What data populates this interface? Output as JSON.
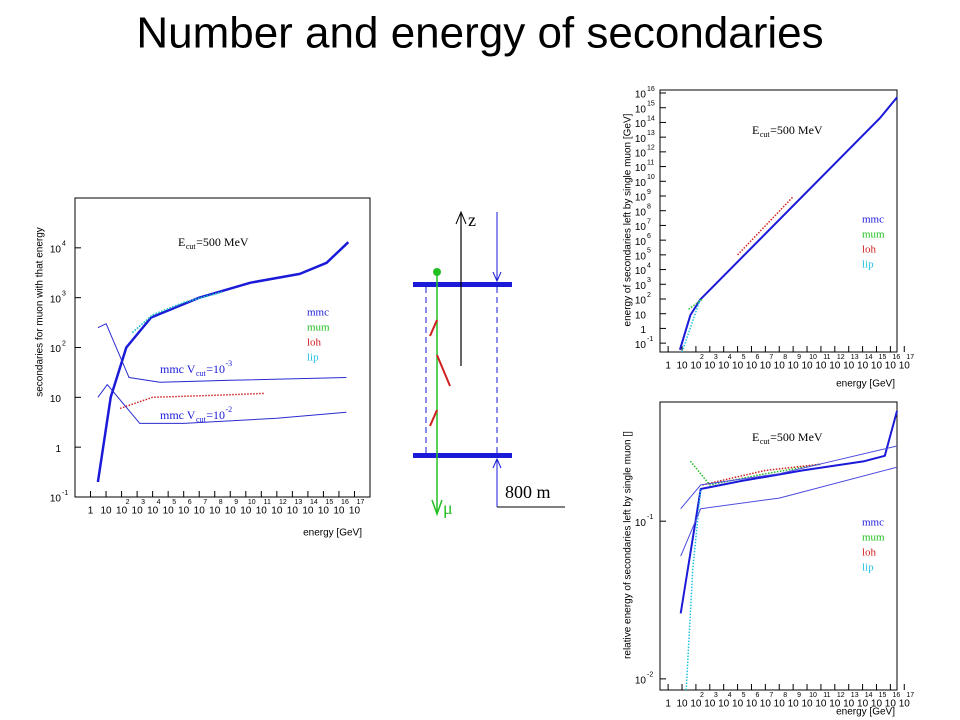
{
  "title": "Number and energy of secondaries",
  "diagram": {
    "axis_label": "z",
    "particle": "μ",
    "depth": "800 m"
  },
  "chart_data": [
    {
      "type": "line",
      "xlog": true,
      "ylog": true,
      "y_label": "secondaries for muon with that energy",
      "x_label": "energy [GeV]",
      "xlim": [
        0.1,
        1e+18
      ],
      "ylim": [
        0.1,
        100000.0
      ],
      "xticks": [
        1,
        10,
        {
          "value": 100.0,
          "label": "10",
          "sup": "2"
        },
        {
          "value": 1000.0,
          "label": "10",
          "sup": "3"
        },
        {
          "value": 10000.0,
          "label": "10",
          "sup": "4"
        },
        {
          "value": 100000.0,
          "label": "10",
          "sup": "5"
        },
        {
          "value": 1000000.0,
          "label": "10",
          "sup": "6"
        },
        {
          "value": 10000000.0,
          "label": "10",
          "sup": "7"
        },
        {
          "value": 100000000.0,
          "label": "10",
          "sup": "8"
        },
        {
          "value": 1000000000.0,
          "label": "10",
          "sup": "9"
        },
        {
          "value": 10000000000.0,
          "label": "10",
          "sup": "10"
        },
        {
          "value": 100000000000.0,
          "label": "10",
          "sup": "11"
        },
        {
          "value": 1000000000000.0,
          "label": "10",
          "sup": "12"
        },
        {
          "value": 10000000000000.0,
          "label": "10",
          "sup": "13"
        },
        {
          "value": 100000000000000.0,
          "label": "10",
          "sup": "14"
        },
        {
          "value": 1000000000000000.0,
          "label": "10",
          "sup": "15"
        },
        {
          "value": 1e+16,
          "label": "10",
          "sup": "16"
        },
        {
          "value": 1e+17,
          "label": "10",
          "sup": "17"
        }
      ],
      "yticks": [
        {
          "value": 0.1,
          "label": "10",
          "sup": "-1"
        },
        1,
        10,
        {
          "value": 100,
          "label": "10",
          "sup": "2"
        },
        {
          "value": 1000,
          "label": "10",
          "sup": "3"
        },
        {
          "value": 10000,
          "label": "10",
          "sup": "4"
        }
      ],
      "legend": true,
      "series": [
        {
          "name": "mmc",
          "color": "#1a1ad8",
          "linewidth": 2.5,
          "x": [
            3,
            20,
            200,
            8000,
            10000000.0,
            20000000000.0,
            30000000000000.0,
            1600000000000000.0,
            4e+16
          ],
          "values": [
            0.2,
            10,
            100,
            400,
            1000,
            2000,
            3000,
            5000,
            13000
          ]
        },
        {
          "name": "mum",
          "color": "#22c022",
          "dotted": true,
          "linewidth": 1.5,
          "x": [
            500,
            10000.0,
            1000000.0,
            300000000.0
          ],
          "values": [
            200,
            450,
            800,
            1300
          ]
        },
        {
          "name": "loh",
          "color": "#d02020",
          "dotted": true,
          "linewidth": 1.5,
          "x": [
            80,
            10000.0,
            100000000.0,
            150000000000.0
          ],
          "values": [
            6,
            10,
            11,
            12
          ]
        },
        {
          "name": "lip",
          "color": "#20c0e0",
          "dotted": true,
          "linewidth": 1.5,
          "x": [
            500,
            10000.0,
            1000000.0,
            300000000.0
          ],
          "values": [
            200,
            450,
            800,
            1300
          ]
        },
        {
          "color": "#2a2ad0",
          "linewidth": 1,
          "x": [
            3,
            10,
            300,
            30000.0,
            1000000000.0,
            3e+16
          ],
          "values": [
            250,
            300,
            25,
            20,
            22,
            25
          ]
        },
        {
          "color": "#2a2ad0",
          "linewidth": 1,
          "x": [
            3,
            12,
            1500,
            1000000.0,
            1000000000000.0,
            3e+16
          ],
          "values": [
            10,
            18,
            3,
            3,
            3.8,
            5
          ]
        }
      ],
      "annotations": [
        {
          "color": "#000000",
          "parts": [
            "E",
            {
              "sub": "cut"
            },
            "=500 MeV"
          ]
        },
        {
          "color": "#1a1ad8",
          "parts": [
            "mmc V",
            {
              "sub": "cut"
            },
            "=10",
            {
              "sup": "-3"
            }
          ]
        },
        {
          "color": "#1a1ad8",
          "parts": [
            "mmc V",
            {
              "sub": "cut"
            },
            "=10",
            {
              "sup": "-2"
            }
          ]
        }
      ]
    },
    {
      "type": "line",
      "xlog": true,
      "ylog": true,
      "y_label": "energy of secondaries left by single muon [GeV]",
      "x_label": "energy [GeV]",
      "xlim": [
        0.26,
        3e+16
      ],
      "ylim": [
        0.025,
        1.6e+16
      ],
      "xticks": [
        1,
        10,
        {
          "value": 100.0,
          "label": "10",
          "sup": "2"
        },
        {
          "value": 1000.0,
          "label": "10",
          "sup": "3"
        },
        {
          "value": 10000.0,
          "label": "10",
          "sup": "4"
        },
        {
          "value": 100000.0,
          "label": "10",
          "sup": "5"
        },
        {
          "value": 1000000.0,
          "label": "10",
          "sup": "6"
        },
        {
          "value": 10000000.0,
          "label": "10",
          "sup": "7"
        },
        {
          "value": 100000000.0,
          "label": "10",
          "sup": "8"
        },
        {
          "value": 1000000000.0,
          "label": "10",
          "sup": "9"
        },
        {
          "value": 10000000000.0,
          "label": "10",
          "sup": "10"
        },
        {
          "value": 100000000000.0,
          "label": "10",
          "sup": "11"
        },
        {
          "value": 1000000000000.0,
          "label": "10",
          "sup": "12"
        },
        {
          "value": 10000000000000.0,
          "label": "10",
          "sup": "13"
        },
        {
          "value": 100000000000000.0,
          "label": "10",
          "sup": "14"
        },
        {
          "value": 1000000000000000.0,
          "label": "10",
          "sup": "15"
        },
        {
          "value": 1e+16,
          "label": "10",
          "sup": "16"
        },
        {
          "value": 1e+17,
          "label": "10",
          "sup": "17"
        }
      ],
      "yticks": [
        {
          "value": 0.1,
          "label": "10",
          "sup": "-1"
        },
        1,
        10,
        {
          "value": 100.0,
          "label": "10",
          "sup": "2"
        },
        {
          "value": 1000.0,
          "label": "10",
          "sup": "3"
        },
        {
          "value": 10000.0,
          "label": "10",
          "sup": "4"
        },
        {
          "value": 100000.0,
          "label": "10",
          "sup": "5"
        },
        {
          "value": 1000000.0,
          "label": "10",
          "sup": "6"
        },
        {
          "value": 10000000.0,
          "label": "10",
          "sup": "7"
        },
        {
          "value": 100000000.0,
          "label": "10",
          "sup": "8"
        },
        {
          "value": 1000000000.0,
          "label": "10",
          "sup": "9"
        },
        {
          "value": 10000000000.0,
          "label": "10",
          "sup": "10"
        },
        {
          "value": 100000000000.0,
          "label": "10",
          "sup": "11"
        },
        {
          "value": 1000000000000.0,
          "label": "10",
          "sup": "12"
        },
        {
          "value": 10000000000000.0,
          "label": "10",
          "sup": "13"
        },
        {
          "value": 100000000000000.0,
          "label": "10",
          "sup": "14"
        },
        {
          "value": 1000000000000000.0,
          "label": "10",
          "sup": "15"
        },
        {
          "value": 1e+16,
          "label": "10",
          "sup": "16"
        }
      ],
      "legend": true,
      "series": [
        {
          "name": "mmc",
          "color": "#1a1ad8",
          "linewidth": 2,
          "x": [
            7,
            40,
            200,
            1800000000000000.0,
            3e+16
          ],
          "values": [
            0.035,
            8,
            90,
            200000000000000.0,
            5000000000000000.0
          ]
        },
        {
          "name": "mum",
          "color": "#22c022",
          "dotted": true,
          "linewidth": 1.5,
          "x": [
            30,
            300
          ],
          "values": [
            20,
            100
          ]
        },
        {
          "name": "loh",
          "color": "#d02020",
          "dotted": true,
          "linewidth": 1.5,
          "x": [
            100000.0,
            1000000000.0
          ],
          "values": [
            100000.0,
            900000000.0
          ]
        },
        {
          "name": "lip",
          "color": "#20c0e0",
          "dotted": true,
          "linewidth": 1.5,
          "x": [
            10,
            200
          ],
          "values": [
            0.025,
            90
          ]
        }
      ],
      "annotations": [
        {
          "color": "#000000",
          "parts": [
            "E",
            {
              "sub": "cut"
            },
            "=500 MeV"
          ]
        }
      ]
    },
    {
      "type": "line",
      "xlog": true,
      "ylog": true,
      "y_label": "relative energy of secondaries left by single muon []",
      "x_label": "energy [GeV]",
      "xlim": [
        0.26,
        3e+16
      ],
      "ylim": [
        0.0085,
        0.57
      ],
      "xticks": [
        1,
        10,
        {
          "value": 100.0,
          "label": "10",
          "sup": "2"
        },
        {
          "value": 1000.0,
          "label": "10",
          "sup": "3"
        },
        {
          "value": 10000.0,
          "label": "10",
          "sup": "4"
        },
        {
          "value": 100000.0,
          "label": "10",
          "sup": "5"
        },
        {
          "value": 1000000.0,
          "label": "10",
          "sup": "6"
        },
        {
          "value": 10000000.0,
          "label": "10",
          "sup": "7"
        },
        {
          "value": 100000000.0,
          "label": "10",
          "sup": "8"
        },
        {
          "value": 1000000000.0,
          "label": "10",
          "sup": "9"
        },
        {
          "value": 10000000000.0,
          "label": "10",
          "sup": "10"
        },
        {
          "value": 100000000000.0,
          "label": "10",
          "sup": "11"
        },
        {
          "value": 1000000000000.0,
          "label": "10",
          "sup": "12"
        },
        {
          "value": 10000000000000.0,
          "label": "10",
          "sup": "13"
        },
        {
          "value": 100000000000000.0,
          "label": "10",
          "sup": "14"
        },
        {
          "value": 1000000000000000.0,
          "label": "10",
          "sup": "15"
        },
        {
          "value": 1e+16,
          "label": "10",
          "sup": "16"
        },
        {
          "value": 1e+17,
          "label": "10",
          "sup": "17"
        }
      ],
      "yticks": [
        {
          "value": 0.01,
          "label": "10",
          "sup": "-2"
        },
        {
          "value": 0.1,
          "label": "10",
          "sup": "-1"
        }
      ],
      "legend": true,
      "series": [
        {
          "name": "mmc",
          "color": "#1a1ad8",
          "linewidth": 2,
          "x": [
            8,
            220,
            200000.0,
            5000000000.0,
            130000000000000.0,
            4000000000000000.0,
            3e+16
          ],
          "values": [
            0.026,
            0.16,
            0.18,
            0.21,
            0.24,
            0.26,
            0.5
          ]
        },
        {
          "name": "mum",
          "color": "#22c022",
          "dotted": true,
          "linewidth": 1.5,
          "x": [
            40,
            1000,
            10000000.0,
            100000000000.0
          ],
          "values": [
            0.24,
            0.17,
            0.2,
            0.23
          ]
        },
        {
          "name": "loh",
          "color": "#d02020",
          "dotted": true,
          "linewidth": 1.5,
          "x": [
            300,
            10000000.0,
            100000000000.0
          ],
          "values": [
            0.17,
            0.21,
            0.23
          ]
        },
        {
          "name": "lip",
          "color": "#20c0e0",
          "dotted": true,
          "linewidth": 1.5,
          "x": [
            20,
            60,
            220
          ],
          "values": [
            0.0085,
            0.05,
            0.16
          ]
        },
        {
          "color": "#4a4ae0",
          "linewidth": 1,
          "x": [
            8,
            220,
            100000000.0,
            3e+16
          ],
          "values": [
            0.12,
            0.17,
            0.2,
            0.3
          ]
        },
        {
          "color": "#4a4ae0",
          "linewidth": 1,
          "x": [
            8,
            220,
            100000000.0,
            3e+16
          ],
          "values": [
            0.06,
            0.12,
            0.14,
            0.22
          ]
        }
      ],
      "annotations": [
        {
          "color": "#000000",
          "parts": [
            "E",
            {
              "sub": "cut"
            },
            "=500 MeV"
          ]
        }
      ]
    }
  ]
}
